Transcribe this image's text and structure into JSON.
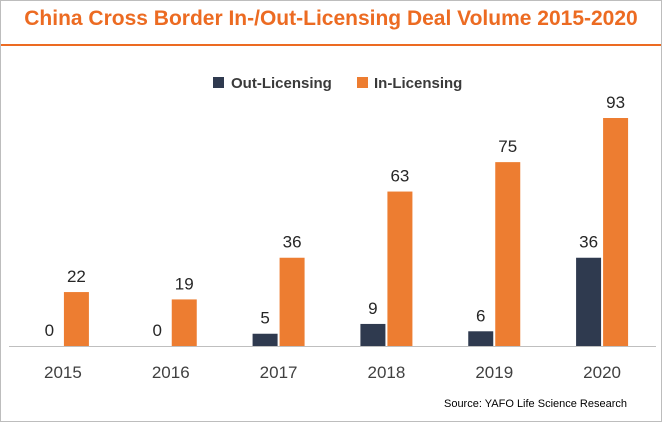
{
  "chart_data": {
    "type": "bar",
    "title": "China Cross Border In-/Out-Licensing Deal Volume 2015-2020",
    "categories": [
      "2015",
      "2016",
      "2017",
      "2018",
      "2019",
      "2020"
    ],
    "series": [
      {
        "name": "Out-Licensing",
        "values": [
          0,
          0,
          5,
          9,
          6,
          36
        ],
        "color": "#2f3a4f"
      },
      {
        "name": "In-Licensing",
        "values": [
          22,
          19,
          36,
          63,
          75,
          93
        ],
        "color": "#ed7d31"
      }
    ],
    "xlabel": "",
    "ylabel": "",
    "ylim": [
      0,
      93
    ],
    "legend": "top-center",
    "grid": false,
    "source": "Source: YAFO Life Science Research"
  }
}
